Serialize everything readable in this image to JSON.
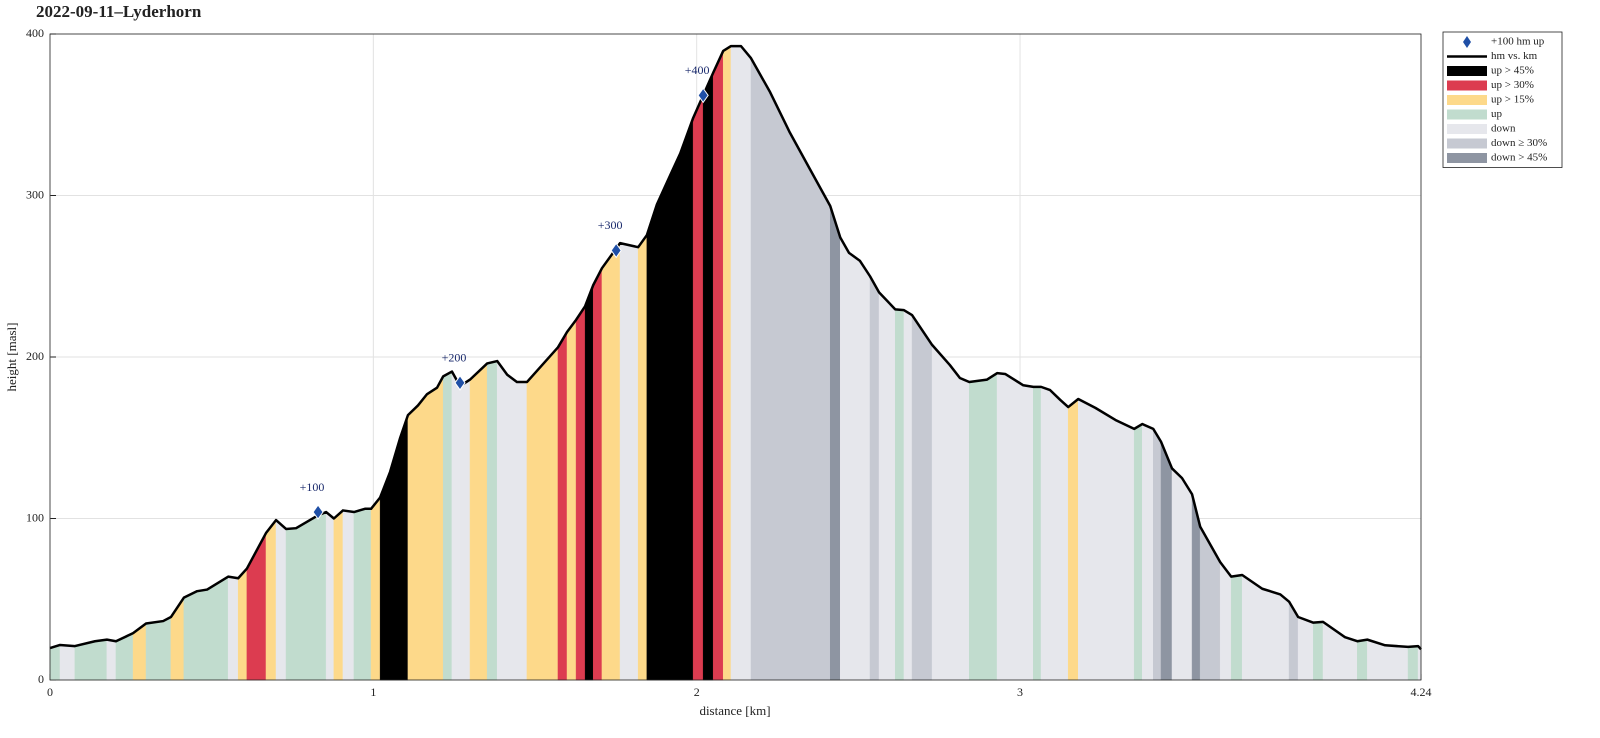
{
  "chart_data": {
    "type": "area-profile",
    "title": "2022-09-11–Lyderhorn",
    "xlabel": "distance [km]",
    "ylabel": "height [masl]",
    "xlim": [
      0,
      4.24
    ],
    "ylim": [
      0,
      400
    ],
    "xticks": [
      0,
      1,
      2,
      3,
      4.24
    ],
    "yticks": [
      0,
      100,
      200,
      300,
      400
    ],
    "grid": true,
    "legend": "outside upper right",
    "line_name": "hm vs. km",
    "line_color": "#000000",
    "x": [
      0,
      0.031,
      0.077,
      0.139,
      0.176,
      0.204,
      0.257,
      0.297,
      0.35,
      0.374,
      0.414,
      0.455,
      0.486,
      0.551,
      0.582,
      0.609,
      0.668,
      0.699,
      0.73,
      0.761,
      0.829,
      0.854,
      0.878,
      0.906,
      0.94,
      0.974,
      0.993,
      1.021,
      1.052,
      1.083,
      1.107,
      1.138,
      1.166,
      1.197,
      1.216,
      1.243,
      1.268,
      1.299,
      1.352,
      1.383,
      1.414,
      1.444,
      1.475,
      1.571,
      1.599,
      1.627,
      1.655,
      1.68,
      1.707,
      1.763,
      1.819,
      1.846,
      1.877,
      1.918,
      1.949,
      1.989,
      2.02,
      2.051,
      2.082,
      2.106,
      2.137,
      2.168,
      2.227,
      2.288,
      2.351,
      2.413,
      2.444,
      2.471,
      2.505,
      2.536,
      2.564,
      2.614,
      2.641,
      2.666,
      2.728,
      2.783,
      2.814,
      2.843,
      2.898,
      2.929,
      2.954,
      3.01,
      3.041,
      3.065,
      3.093,
      3.124,
      3.149,
      3.18,
      3.233,
      3.295,
      3.353,
      3.378,
      3.412,
      3.436,
      3.47,
      3.501,
      3.532,
      3.557,
      3.619,
      3.653,
      3.687,
      3.749,
      3.805,
      3.832,
      3.86,
      3.907,
      3.937,
      4.005,
      4.043,
      4.074,
      4.129,
      4.2,
      4.231,
      4.24
    ],
    "values": [
      19.8,
      21.7,
      21,
      24,
      25,
      24,
      29,
      35,
      36.5,
      39,
      51,
      55,
      56,
      64,
      63,
      69,
      91,
      99,
      93.5,
      94,
      102,
      104,
      100,
      105,
      104,
      106,
      106,
      113,
      129,
      150,
      164,
      170,
      177,
      181,
      188,
      191,
      182,
      186,
      196,
      197.5,
      189,
      184.5,
      184.5,
      206,
      215.5,
      223,
      231.5,
      244.5,
      255,
      270.5,
      268,
      275.5,
      294.5,
      312.5,
      326,
      348,
      362,
      376,
      389.5,
      392.5,
      392.5,
      385,
      364,
      339,
      316,
      293.5,
      274,
      264.5,
      259.5,
      250,
      240,
      229.5,
      229,
      226,
      207.5,
      195,
      187,
      184.5,
      186,
      190,
      189.5,
      182.5,
      181.5,
      181.5,
      179.5,
      173.5,
      169,
      174,
      168.5,
      161,
      155.5,
      158.5,
      155.5,
      147.5,
      131,
      125,
      115,
      95,
      73,
      64,
      65,
      56.5,
      53,
      48.5,
      39,
      35.5,
      36,
      26.5,
      24,
      25,
      21.5,
      20.5,
      21,
      19
    ],
    "markers": {
      "name": "+100 hm up",
      "color": "#1f4fa6",
      "label_color": "#1a2a6c",
      "x": [
        0.829,
        1.268,
        1.751,
        2.02
      ],
      "values": [
        104,
        184,
        266,
        362
      ],
      "labels": [
        "+100",
        "+200",
        "+300",
        "+400"
      ]
    },
    "classes": [
      {
        "name": "up > 45%",
        "color": "#000000"
      },
      {
        "name": "up > 30%",
        "color": "#dc3c50"
      },
      {
        "name": "up > 15%",
        "color": "#fdd98a"
      },
      {
        "name": "up",
        "color": "#c1dcce"
      },
      {
        "name": "down",
        "color": "#e6e7ec"
      },
      {
        "name": "down ≥ 30%",
        "color": "#c6c9d2"
      },
      {
        "name": "down > 45%",
        "color": "#8e95a2"
      }
    ],
    "bands": {
      "x": [
        0,
        0.031,
        0.077,
        0.176,
        0.204,
        0.257,
        0.297,
        0.374,
        0.414,
        0.551,
        0.582,
        0.609,
        0.668,
        0.699,
        0.73,
        0.854,
        0.878,
        0.906,
        0.94,
        0.993,
        1.021,
        1.107,
        1.216,
        1.243,
        1.299,
        1.352,
        1.383,
        1.475,
        1.571,
        1.599,
        1.627,
        1.655,
        1.68,
        1.707,
        1.763,
        1.819,
        1.846,
        1.989,
        2.02,
        2.051,
        2.082,
        2.106,
        2.168,
        2.413,
        2.444,
        2.471,
        2.536,
        2.564,
        2.614,
        2.641,
        2.666,
        2.728,
        2.843,
        2.929,
        3.041,
        3.065,
        3.149,
        3.18,
        3.353,
        3.378,
        3.412,
        3.436,
        3.47,
        3.532,
        3.557,
        3.619,
        3.653,
        3.687,
        3.832,
        3.86,
        3.907,
        3.937,
        4.043,
        4.074,
        4.2,
        4.231,
        4.24
      ],
      "class": [
        3,
        4,
        3,
        4,
        3,
        2,
        3,
        2,
        3,
        4,
        2,
        1,
        2,
        4,
        3,
        4,
        2,
        4,
        3,
        2,
        0,
        2,
        3,
        4,
        2,
        3,
        4,
        2,
        1,
        2,
        1,
        0,
        1,
        2,
        4,
        2,
        0,
        1,
        0,
        1,
        2,
        4,
        5,
        6,
        4,
        4,
        5,
        4,
        3,
        4,
        5,
        4,
        3,
        4,
        3,
        4,
        2,
        4,
        3,
        4,
        5,
        6,
        4,
        6,
        5,
        4,
        3,
        4,
        5,
        4,
        3,
        4,
        3,
        4,
        3,
        4
      ]
    }
  }
}
